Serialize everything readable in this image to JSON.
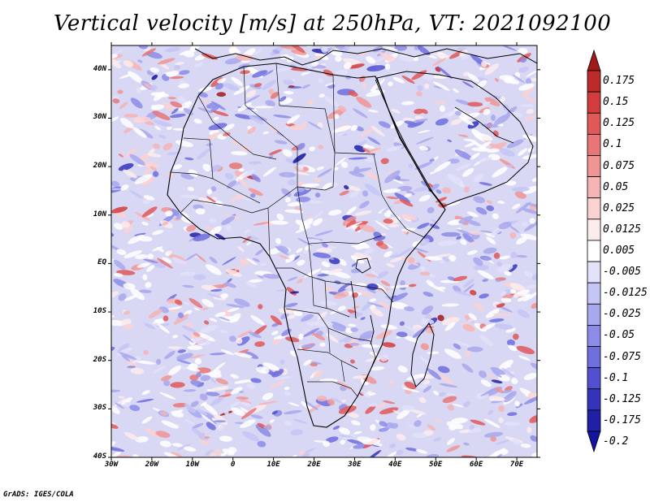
{
  "title": "Vertical velocity [m/s] at 250hPa, VT: 2021092100",
  "footer": "GrADS: IGES/COLA",
  "map": {
    "lat_range": [
      -40,
      45
    ],
    "lon_range": [
      -30,
      75
    ],
    "lat_ticks": [
      {
        "value": 40,
        "label": "40N"
      },
      {
        "value": 30,
        "label": "30N"
      },
      {
        "value": 20,
        "label": "20N"
      },
      {
        "value": 10,
        "label": "10N"
      },
      {
        "value": 0,
        "label": "EQ"
      },
      {
        "value": -10,
        "label": "10S"
      },
      {
        "value": -20,
        "label": "20S"
      },
      {
        "value": -30,
        "label": "30S"
      },
      {
        "value": -40,
        "label": "40S"
      }
    ],
    "lon_ticks": [
      {
        "value": -30,
        "label": "30W"
      },
      {
        "value": -20,
        "label": "20W"
      },
      {
        "value": -10,
        "label": "10W"
      },
      {
        "value": 0,
        "label": "0"
      },
      {
        "value": 10,
        "label": "10E"
      },
      {
        "value": 20,
        "label": "20E"
      },
      {
        "value": 30,
        "label": "30E"
      },
      {
        "value": 40,
        "label": "40E"
      },
      {
        "value": 50,
        "label": "50E"
      },
      {
        "value": 60,
        "label": "60E"
      },
      {
        "value": 70,
        "label": "70E"
      }
    ]
  },
  "colorbar": {
    "labels": [
      "0.175",
      "0.15",
      "0.125",
      "0.1",
      "0.075",
      "0.05",
      "0.025",
      "0.0125",
      "0.005",
      "-0.005",
      "-0.0125",
      "-0.025",
      "-0.05",
      "-0.075",
      "-0.1",
      "-0.125",
      "-0.175",
      "-0.2"
    ],
    "colors": [
      "#a01a1a",
      "#bd2a2a",
      "#d23c3c",
      "#e05858",
      "#e87676",
      "#f09494",
      "#f6b4b4",
      "#fad2d2",
      "#fdecec",
      "#ffffff",
      "#e2e2fb",
      "#c6c6f6",
      "#a8a8ef",
      "#8c8ce8",
      "#6e6ede",
      "#5050d0",
      "#3434bb",
      "#2020a6",
      "#1414a0"
    ]
  }
}
